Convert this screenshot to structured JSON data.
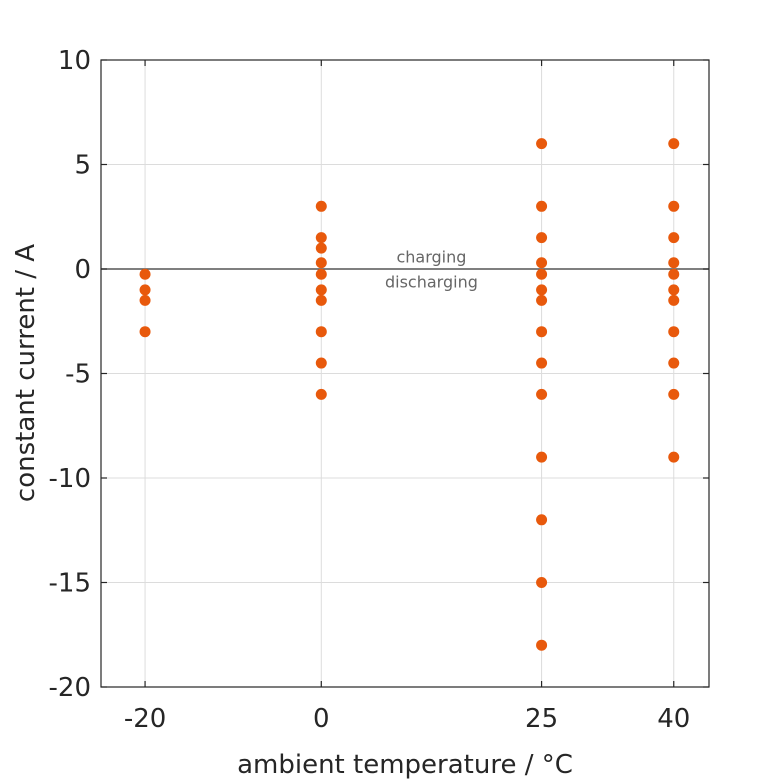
{
  "chart_data": {
    "type": "scatter",
    "xlabel": "ambient temperature / °C",
    "ylabel": "constant current / A",
    "x_ticks": [
      -20,
      0,
      25,
      40
    ],
    "x_tick_labels": [
      "-20",
      "0",
      "25",
      "40"
    ],
    "y_ticks": [
      -20,
      -15,
      -10,
      -5,
      0,
      5,
      10
    ],
    "y_tick_labels": [
      "-20",
      "-15",
      "-10",
      "-5",
      "0",
      "5",
      "10"
    ],
    "xlim": [
      -25,
      44
    ],
    "ylim": [
      -20,
      10
    ],
    "grid": true,
    "marker_color": "#e8590c",
    "reference_line": {
      "y": 0
    },
    "annotations": [
      {
        "text": "charging",
        "x": 12.5,
        "y": 0.6
      },
      {
        "text": "discharging",
        "x": 12.5,
        "y": -0.6
      }
    ],
    "series": [
      {
        "points": [
          {
            "x": -20,
            "y": -0.25
          },
          {
            "x": -20,
            "y": -1
          },
          {
            "x": -20,
            "y": -1.5
          },
          {
            "x": -20,
            "y": -3
          },
          {
            "x": 0,
            "y": 3
          },
          {
            "x": 0,
            "y": 1.5
          },
          {
            "x": 0,
            "y": 1
          },
          {
            "x": 0,
            "y": 0.3
          },
          {
            "x": 0,
            "y": -0.25
          },
          {
            "x": 0,
            "y": -1
          },
          {
            "x": 0,
            "y": -1.5
          },
          {
            "x": 0,
            "y": -3
          },
          {
            "x": 0,
            "y": -4.5
          },
          {
            "x": 0,
            "y": -6
          },
          {
            "x": 25,
            "y": 6
          },
          {
            "x": 25,
            "y": 3
          },
          {
            "x": 25,
            "y": 1.5
          },
          {
            "x": 25,
            "y": 0.3
          },
          {
            "x": 25,
            "y": -0.25
          },
          {
            "x": 25,
            "y": -1
          },
          {
            "x": 25,
            "y": -1.5
          },
          {
            "x": 25,
            "y": -3
          },
          {
            "x": 25,
            "y": -4.5
          },
          {
            "x": 25,
            "y": -6
          },
          {
            "x": 25,
            "y": -9
          },
          {
            "x": 25,
            "y": -12
          },
          {
            "x": 25,
            "y": -15
          },
          {
            "x": 25,
            "y": -18
          },
          {
            "x": 40,
            "y": 6
          },
          {
            "x": 40,
            "y": 3
          },
          {
            "x": 40,
            "y": 1.5
          },
          {
            "x": 40,
            "y": 0.3
          },
          {
            "x": 40,
            "y": -0.25
          },
          {
            "x": 40,
            "y": -1
          },
          {
            "x": 40,
            "y": -1.5
          },
          {
            "x": 40,
            "y": -3
          },
          {
            "x": 40,
            "y": -4.5
          },
          {
            "x": 40,
            "y": -6
          },
          {
            "x": 40,
            "y": -9
          }
        ]
      }
    ]
  }
}
